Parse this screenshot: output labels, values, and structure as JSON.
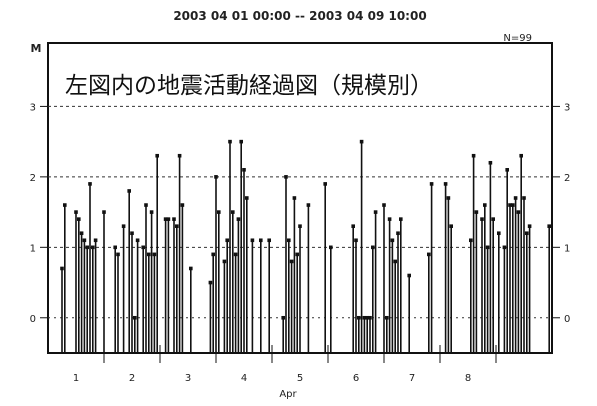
{
  "chart_data": {
    "type": "bar",
    "title": "2003 04 01 00:00 -- 2003 04 09 10:00",
    "ylabel": "M",
    "xlabel": "Apr",
    "count_label": "N=99",
    "annotation": "左図内の地震活動経過図（規模別）",
    "ylim": [
      -0.5,
      3.9
    ],
    "xlim": [
      0.0,
      9.0
    ],
    "y_ticks": [
      0,
      1,
      2,
      3
    ],
    "y_tick_labels": [
      "0",
      "1",
      "2",
      "3"
    ],
    "x_tick_labels": [
      "1",
      "2",
      "3",
      "4",
      "5",
      "6",
      "7",
      "8"
    ],
    "x_tick_positions": [
      0.5,
      1.5,
      2.5,
      3.5,
      4.5,
      5.5,
      6.5,
      7.5
    ],
    "grid_lines_y": [
      1,
      2,
      3
    ],
    "stem_color": "#111111",
    "events": {
      "x": [
        0.25,
        0.3,
        0.5,
        0.55,
        0.6,
        0.65,
        0.7,
        0.75,
        0.8,
        0.85,
        1.0,
        1.2,
        1.25,
        1.35,
        1.45,
        1.5,
        1.55,
        1.6,
        1.7,
        1.75,
        1.8,
        1.85,
        1.9,
        1.95,
        2.1,
        2.15,
        2.25,
        2.3,
        2.35,
        2.4,
        2.55,
        2.9,
        2.95,
        3.0,
        3.05,
        3.15,
        3.2,
        3.25,
        3.3,
        3.35,
        3.4,
        3.45,
        3.5,
        3.55,
        3.65,
        3.8,
        3.95,
        4.2,
        4.25,
        4.3,
        4.35,
        4.4,
        4.45,
        4.5,
        4.65,
        4.95,
        5.05,
        5.45,
        5.5,
        5.55,
        5.6,
        5.65,
        5.7,
        5.75,
        5.8,
        5.85,
        6.0,
        6.05,
        6.1,
        6.15,
        6.2,
        6.25,
        6.3,
        6.45,
        6.8,
        6.85,
        7.1,
        7.15,
        7.2,
        7.55,
        7.6,
        7.65,
        7.75,
        7.8,
        7.85,
        7.9,
        7.95,
        8.05,
        8.15,
        8.2,
        8.25,
        8.3,
        8.35,
        8.4,
        8.45,
        8.5,
        8.55,
        8.6,
        8.95
      ],
      "magnitude": [
        0.7,
        1.6,
        1.5,
        1.4,
        1.2,
        1.1,
        1.0,
        1.9,
        1.0,
        1.1,
        1.5,
        1.0,
        0.9,
        1.3,
        1.8,
        1.2,
        0.0,
        1.1,
        1.0,
        1.6,
        0.9,
        1.5,
        0.9,
        2.3,
        1.4,
        1.4,
        1.4,
        1.3,
        2.3,
        1.6,
        0.7,
        0.5,
        0.9,
        2.0,
        1.5,
        0.8,
        1.1,
        2.5,
        1.5,
        0.9,
        1.4,
        2.5,
        2.1,
        1.7,
        1.1,
        1.1,
        1.1,
        0.0,
        2.0,
        1.1,
        0.8,
        1.7,
        0.9,
        1.3,
        1.6,
        1.9,
        1.0,
        1.3,
        1.1,
        0.0,
        2.5,
        0.0,
        0.0,
        0.0,
        1.0,
        1.5,
        1.6,
        0.0,
        1.4,
        1.1,
        0.8,
        1.2,
        1.4,
        0.6,
        0.9,
        1.9,
        1.9,
        1.7,
        1.3,
        1.1,
        2.3,
        1.5,
        1.4,
        1.6,
        1.0,
        2.2,
        1.4,
        1.2,
        1.0,
        2.1,
        1.6,
        1.6,
        1.7,
        1.5,
        2.3,
        1.7,
        1.2,
        1.3,
        1.3
      ]
    }
  }
}
